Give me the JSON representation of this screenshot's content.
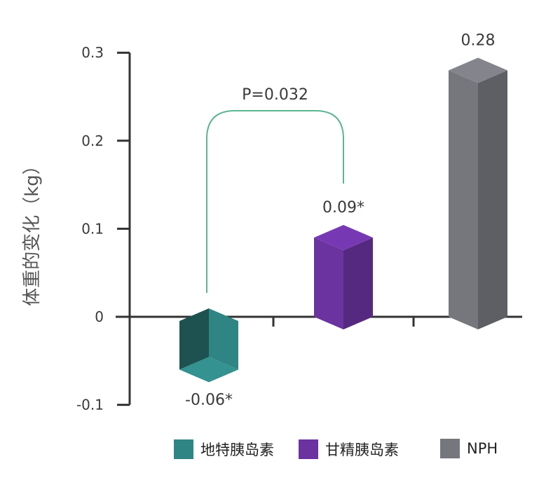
{
  "chart_data": {
    "type": "bar",
    "title": "",
    "ylabel": "体重的变化（kg）",
    "xlabel": "",
    "ylim": [
      -0.1,
      0.3
    ],
    "yticks": [
      -0.1,
      0,
      0.1,
      0.2,
      0.3
    ],
    "ytick_labels": [
      "-0.1",
      "0",
      "0.1",
      "0.2",
      "0.3"
    ],
    "categories": [
      "地特胰岛素",
      "甘精胰岛素",
      "NPH"
    ],
    "values": [
      -0.06,
      0.09,
      0.28
    ],
    "value_labels": [
      "-0.06*",
      "0.09*",
      "0.28"
    ],
    "colors": [
      "#2f8583",
      "#6a33a0",
      "#76777d"
    ],
    "legend_position": "bottom",
    "legend": [
      "地特胰岛素",
      "甘精胰岛素",
      "NPH"
    ],
    "annotation": {
      "text": "P=0.032",
      "between": [
        "地特胰岛素",
        "甘精胰岛素"
      ],
      "color": "#5bb592"
    }
  }
}
